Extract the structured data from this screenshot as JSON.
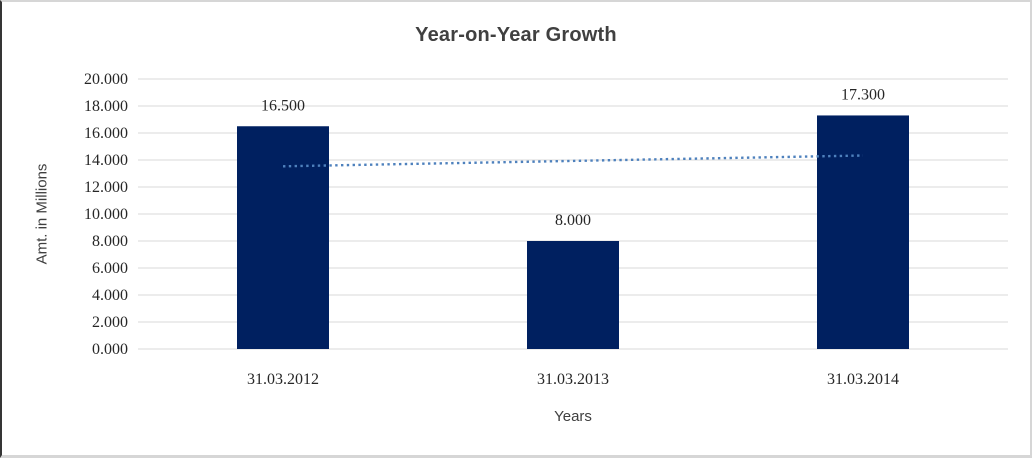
{
  "chart_data": {
    "type": "bar",
    "title": "Year-on-Year Growth",
    "xlabel": "Years",
    "ylabel": "Amt. in Millions",
    "categories": [
      "31.03.2012",
      "31.03.2013",
      "31.03.2014"
    ],
    "values": [
      16.5,
      8.0,
      17.3
    ],
    "data_labels": [
      "16.500",
      "8.000",
      "17.300"
    ],
    "ylim": [
      0,
      20
    ],
    "ytick_step": 2,
    "ytick_labels": [
      "0.000",
      "2.000",
      "4.000",
      "6.000",
      "8.000",
      "10.000",
      "12.000",
      "14.000",
      "16.000",
      "18.000",
      "20.000"
    ],
    "grid": true,
    "legend": "none",
    "bar_color": "#002060",
    "gridline_color": "#d9d9d9",
    "text_color": "#262626",
    "title_color": "#404040",
    "trendline": {
      "type": "linear",
      "style": "dotted",
      "color": "#4e81bd",
      "y_start": 13.533,
      "y_end": 14.333
    }
  }
}
